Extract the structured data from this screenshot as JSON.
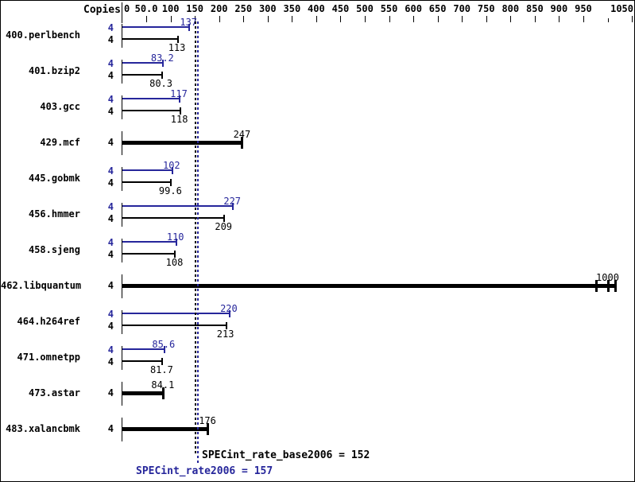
{
  "colors": {
    "peak_blue": "#26269b",
    "base_black": "#000000",
    "background": "#ffffff",
    "border": "#000000"
  },
  "axis": {
    "copies_header": "Copies",
    "unit_min": 0,
    "unit_max": 1050,
    "labeled_ticks": [
      {
        "value": 0,
        "label": "0"
      },
      {
        "value": 50,
        "label": "50.0"
      },
      {
        "value": 100,
        "label": "100"
      },
      {
        "value": 150,
        "label": "150"
      },
      {
        "value": 200,
        "label": "200"
      },
      {
        "value": 250,
        "label": "250"
      },
      {
        "value": 300,
        "label": "300"
      },
      {
        "value": 350,
        "label": "350"
      },
      {
        "value": 400,
        "label": "400"
      },
      {
        "value": 450,
        "label": "450"
      },
      {
        "value": 500,
        "label": "500"
      },
      {
        "value": 550,
        "label": "550"
      },
      {
        "value": 600,
        "label": "600"
      },
      {
        "value": 650,
        "label": "650"
      },
      {
        "value": 700,
        "label": "700"
      },
      {
        "value": 750,
        "label": "750"
      },
      {
        "value": 800,
        "label": "800"
      },
      {
        "value": 850,
        "label": "850"
      },
      {
        "value": 900,
        "label": "900"
      },
      {
        "value": 950,
        "label": "950"
      },
      {
        "value": 1050,
        "label": "1050"
      }
    ],
    "minor_ticks": [
      1000
    ]
  },
  "chart_data": {
    "type": "bar",
    "orientation": "horizontal",
    "title": "",
    "xlabel": "",
    "ylabel": "Copies",
    "xlim": [
      0,
      1050
    ],
    "legend": "blue bar = peak (SPECint_rate2006), black bar = base; bold single bar = base and peak shown together",
    "benchmarks": [
      {
        "name": "400.perlbench",
        "copies": "4",
        "merged": false,
        "peak": 137,
        "peak_label": "137",
        "base": 113,
        "base_label": "113"
      },
      {
        "name": "401.bzip2",
        "copies": "4",
        "merged": false,
        "peak": 83.2,
        "peak_label": "83.2",
        "base": 80.3,
        "base_label": "80.3"
      },
      {
        "name": "403.gcc",
        "copies": "4",
        "merged": false,
        "peak": 117,
        "peak_label": "117",
        "base": 118,
        "base_label": "118"
      },
      {
        "name": "429.mcf",
        "copies": "4",
        "merged": true,
        "base": 247,
        "base_label": "247"
      },
      {
        "name": "445.gobmk",
        "copies": "4",
        "merged": false,
        "peak": 102,
        "peak_label": "102",
        "base": 99.6,
        "base_label": "99.6"
      },
      {
        "name": "456.hmmer",
        "copies": "4",
        "merged": false,
        "peak": 227,
        "peak_label": "227",
        "base": 209,
        "base_label": "209"
      },
      {
        "name": "458.sjeng",
        "copies": "4",
        "merged": false,
        "peak": 110,
        "peak_label": "110",
        "base": 108,
        "base_label": "108"
      },
      {
        "name": "462.libquantum",
        "copies": "4",
        "merged": true,
        "base": 1000,
        "base_label": "1000",
        "run_ticks": [
          976,
          1000,
          1015
        ]
      },
      {
        "name": "464.h264ref",
        "copies": "4",
        "merged": false,
        "peak": 220,
        "peak_label": "220",
        "base": 213,
        "base_label": "213"
      },
      {
        "name": "471.omnetpp",
        "copies": "4",
        "merged": false,
        "peak": 85.6,
        "peak_label": "85.6",
        "base": 81.7,
        "base_label": "81.7"
      },
      {
        "name": "473.astar",
        "copies": "4",
        "merged": true,
        "base": 84.1,
        "base_label": "84.1"
      },
      {
        "name": "483.xalancbmk",
        "copies": "4",
        "merged": true,
        "base": 176,
        "base_label": "176"
      }
    ],
    "reference_lines": [
      {
        "metric": "SPECint_rate_base2006",
        "value": 152,
        "color": "#000000"
      },
      {
        "metric": "SPECint_rate2006",
        "value": 157,
        "color": "#26269b"
      }
    ]
  },
  "footer": {
    "base_label": "SPECint_rate_base2006 = 152",
    "peak_label": "SPECint_rate2006 = 157"
  }
}
